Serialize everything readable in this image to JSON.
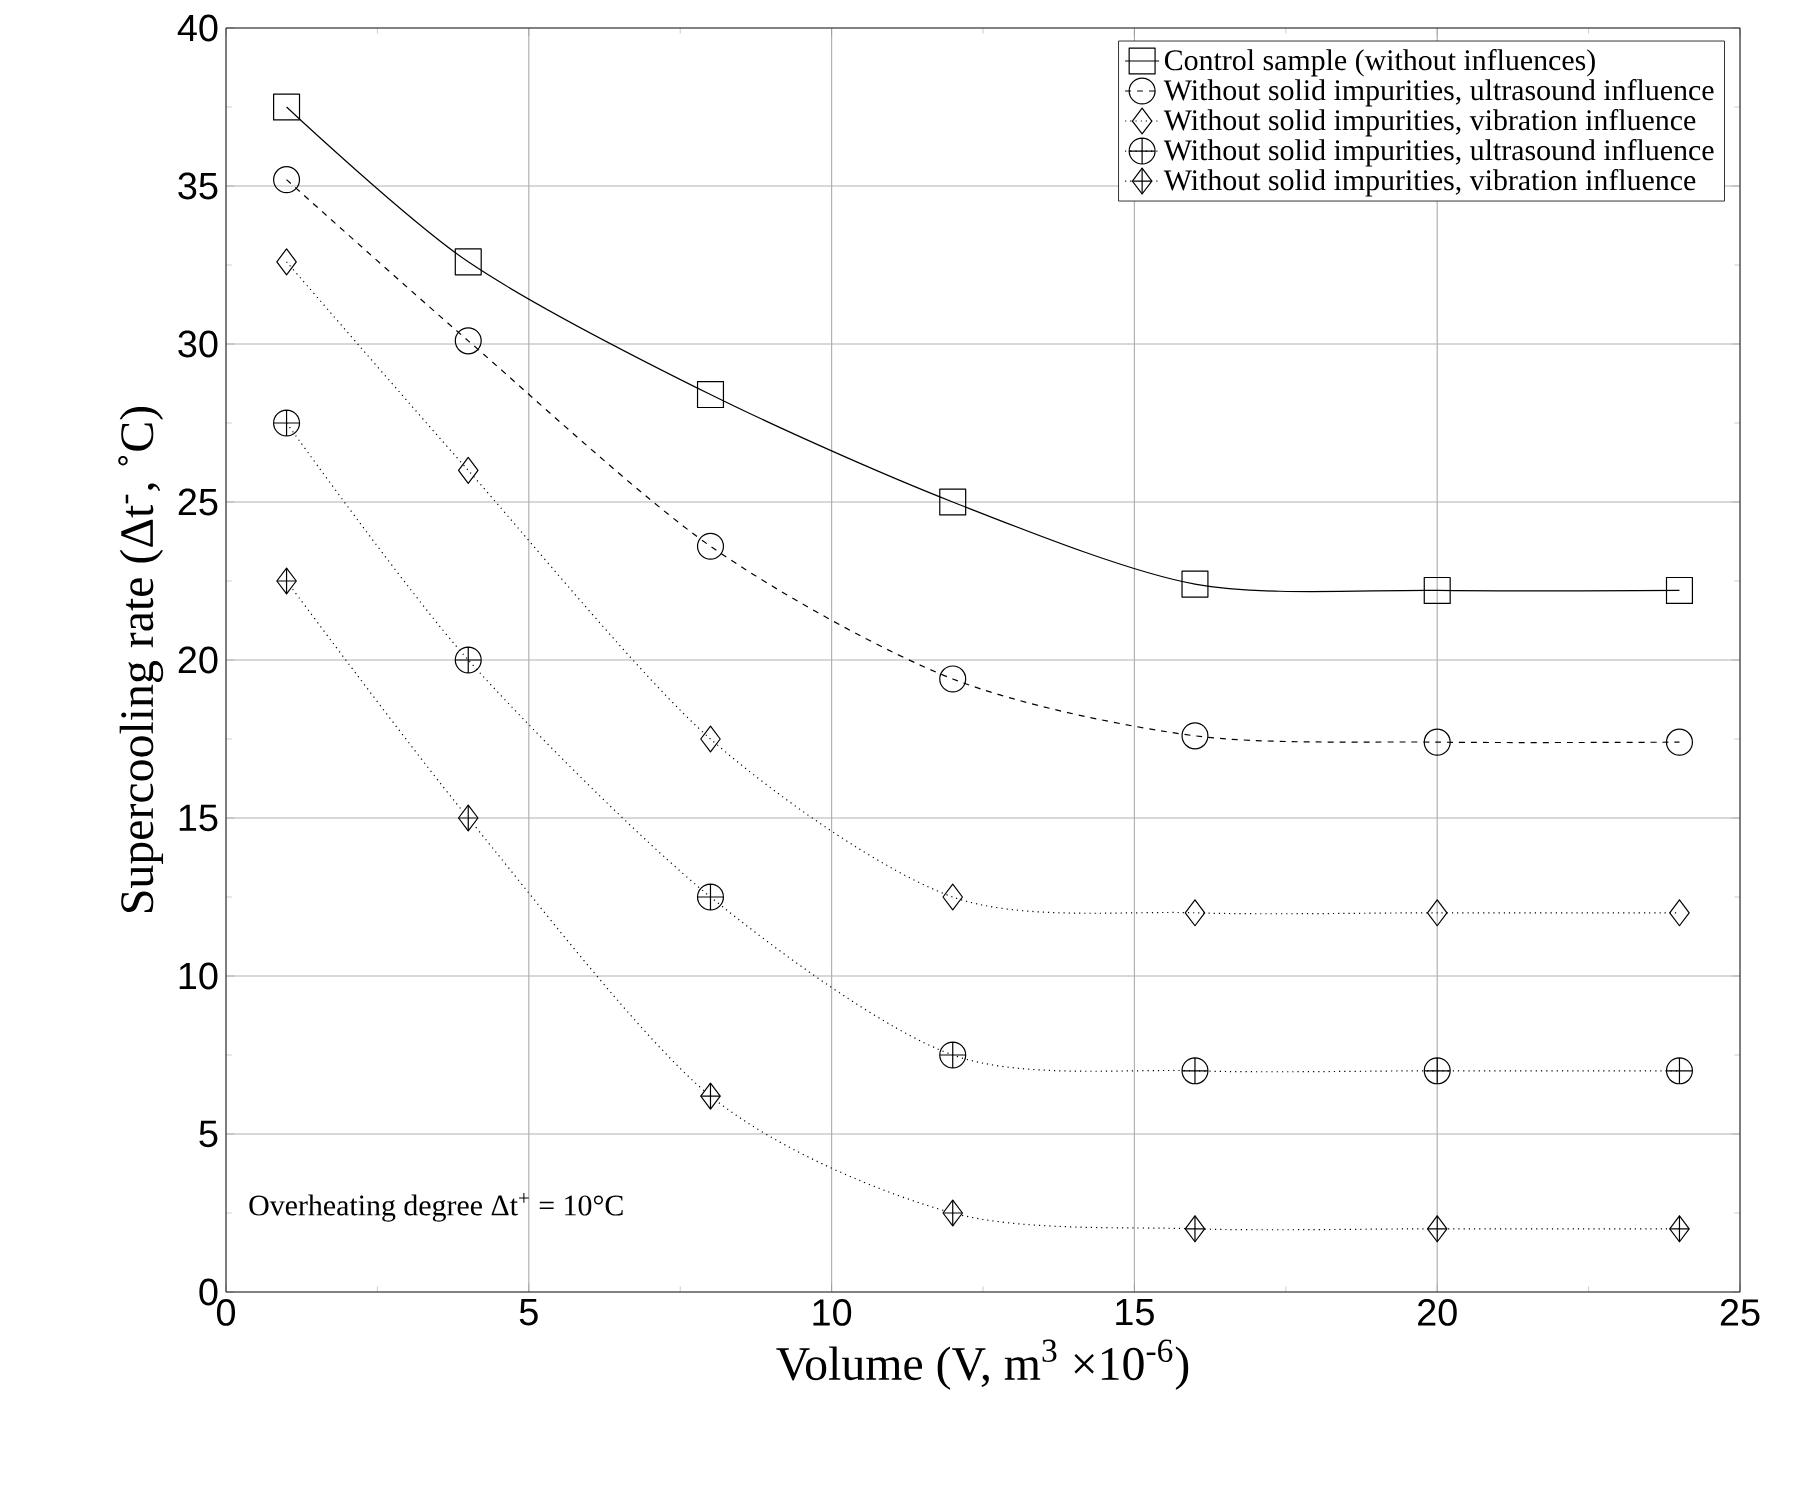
{
  "chart_data": {
    "type": "line",
    "xlabel": "Volume (V, m$^{3}$ ×10$^{-6}$)",
    "ylabel": "Supercooling rate (Δt$^{-}$, ˚C)",
    "xlim": [
      0,
      25
    ],
    "ylim": [
      0,
      40
    ],
    "xticks": [
      0,
      5,
      10,
      15,
      20,
      25
    ],
    "yticks": [
      0,
      5,
      10,
      15,
      20,
      25,
      30,
      35,
      40
    ],
    "grid": true,
    "legend": "top right",
    "x": [
      1,
      4,
      8,
      12,
      16,
      20,
      24
    ],
    "series": [
      {
        "name": "Control sample (without influences)",
        "color": "#000000",
        "marker": "square",
        "line_style": "solid",
        "values": [
          37.5,
          32.6,
          28.4,
          25,
          22.4,
          22.2,
          22.2
        ]
      },
      {
        "name": "Without solid impurities, ultrasound influence",
        "color": "#000000",
        "marker": "circle",
        "line_style": "dashed",
        "values": [
          35.2,
          30.1,
          23.6,
          19.4,
          17.6,
          17.4,
          17.4
        ]
      },
      {
        "name": "Without solid impurities, vibration influence",
        "color": "#000000",
        "marker": "diamond",
        "line_style": "dotted",
        "values": [
          32.6,
          26,
          17.5,
          12.5,
          12,
          12,
          12
        ]
      },
      {
        "name": "Without solid impurities, ultrasound influence",
        "color": "#000000",
        "marker": "cross",
        "line_style": "dotted",
        "values": [
          27.5,
          20,
          12.5,
          7.5,
          7,
          7,
          7
        ]
      },
      {
        "name": "Without solid impurities, vibration influence",
        "color": "#000000",
        "marker": "diamond-plus",
        "line_style": "dotted",
        "values": [
          22.5,
          15,
          6.2,
          2.5,
          2,
          2,
          2
        ]
      }
    ],
    "annotations": [
      "Overheating degree Δt$^{+}$ = 10°C"
    ]
  }
}
